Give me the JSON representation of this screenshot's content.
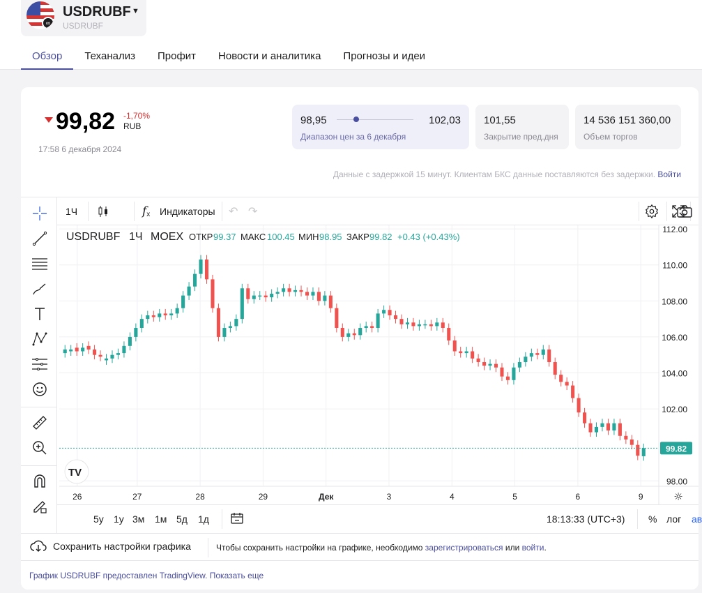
{
  "header": {
    "ticker": "USDRUBF",
    "ticker_sub": "USDRUBF",
    "caret_icon": "chevron-down-icon",
    "tabs": [
      {
        "label": "Обзор",
        "active": true
      },
      {
        "label": "Теханализ",
        "active": false
      },
      {
        "label": "Профит",
        "active": false
      },
      {
        "label": "Новости и аналитика",
        "active": false
      },
      {
        "label": "Прогнозы и идеи",
        "active": false
      }
    ]
  },
  "quote": {
    "price": "99,82",
    "change": "-1,70%",
    "currency": "RUB",
    "timestamp": "17:58 6 декабря 2024",
    "range_low": "98,95",
    "range_high": "102,03",
    "range_label": "Диапазон цен за 6 декабря",
    "range_position": 0.25,
    "prev_close": "101,55",
    "prev_close_label": "Закрытие пред.дня",
    "volume": "14 536 151 360,00",
    "volume_label": "Объем торгов",
    "delay_text": "Данные с задержкой 15 минут. Клиентам БКС данные поставляются без задержки.",
    "delay_link": "Войти",
    "down_color": "#d63030",
    "accent_color": "#4b4fa0"
  },
  "chart_toolbar": {
    "interval": "1Ч",
    "indicators": "Индикаторы",
    "legend_symbol": "USDRUBF",
    "legend_interval": "1Ч",
    "legend_exchange": "MOEX",
    "open_label": "ОТКР",
    "open_value": "99.37",
    "high_label": "МАКС",
    "high_value": "100.45",
    "low_label": "МИН",
    "low_value": "98.95",
    "close_label": "ЗАКР",
    "close_value": "99.82",
    "change_text": "+0.43 (+0.43%)",
    "periods": [
      "5у",
      "1у",
      "3м",
      "1м",
      "5д",
      "1д"
    ],
    "time": "18:13:33 (UTC+3)",
    "pct": "%",
    "log": "лог",
    "auto": "авто"
  },
  "chart_data": {
    "type": "candlestick",
    "x_ticks": [
      "26",
      "27",
      "28",
      "29",
      "Дек",
      "3",
      "4",
      "5",
      "6",
      "9"
    ],
    "y_ticks": [
      "112.00",
      "110.00",
      "108.00",
      "106.00",
      "104.00",
      "102.00",
      "98.00"
    ],
    "ylim": [
      97.7,
      112.2
    ],
    "last_price": "99.82",
    "up_color": "#26a69a",
    "down_color": "#ef5350",
    "closes": [
      105.3,
      105.3,
      105.2,
      105.4,
      105.3,
      105.0,
      104.9,
      104.8,
      105.0,
      105.1,
      105.5,
      106.0,
      106.5,
      107.0,
      107.2,
      107.1,
      107.3,
      107.2,
      107.3,
      107.6,
      108.3,
      108.8,
      109.5,
      110.3,
      109.2,
      107.6,
      106.0,
      106.5,
      106.6,
      107.0,
      108.7,
      108.1,
      108.3,
      108.3,
      108.2,
      108.4,
      108.5,
      108.7,
      108.5,
      108.6,
      108.5,
      108.3,
      108.5,
      108.0,
      108.3,
      107.6,
      106.5,
      106.0,
      106.2,
      106.1,
      106.5,
      106.6,
      106.5,
      107.3,
      107.5,
      107.2,
      107.0,
      106.7,
      106.8,
      106.6,
      106.7,
      106.7,
      106.6,
      106.8,
      106.5,
      105.8,
      105.2,
      105.1,
      105.2,
      104.8,
      104.6,
      104.4,
      104.5,
      104.3,
      103.8,
      103.6,
      104.3,
      104.6,
      104.9,
      105.1,
      105.0,
      105.3,
      104.6,
      103.9,
      103.5,
      103.3,
      102.6,
      101.8,
      101.2,
      100.7,
      101.0,
      101.2,
      100.8,
      101.2,
      100.5,
      100.3,
      100.0,
      99.4,
      99.82
    ],
    "opens": [
      105.1,
      105.2,
      105.4,
      105.2,
      105.5,
      105.3,
      105.0,
      104.7,
      104.8,
      105.0,
      105.1,
      105.5,
      106.0,
      106.5,
      107.0,
      107.2,
      107.1,
      107.3,
      107.2,
      107.3,
      107.6,
      108.3,
      108.8,
      109.5,
      110.3,
      109.2,
      107.6,
      106.0,
      106.5,
      106.6,
      107.0,
      108.7,
      108.1,
      108.3,
      108.3,
      108.2,
      108.4,
      108.5,
      108.7,
      108.5,
      108.6,
      108.5,
      108.3,
      108.5,
      108.0,
      108.3,
      107.6,
      106.5,
      106.0,
      106.2,
      106.1,
      106.5,
      106.6,
      106.5,
      107.3,
      107.5,
      107.2,
      107.0,
      106.7,
      106.8,
      106.6,
      106.7,
      106.7,
      106.6,
      106.8,
      106.5,
      105.8,
      105.2,
      105.1,
      105.2,
      104.8,
      104.6,
      104.4,
      104.5,
      104.3,
      103.8,
      103.6,
      104.3,
      104.6,
      104.9,
      105.1,
      105.0,
      105.3,
      104.6,
      103.9,
      103.5,
      103.3,
      102.6,
      101.8,
      101.2,
      100.7,
      101.0,
      101.2,
      100.8,
      101.2,
      100.5,
      100.3,
      100.0,
      99.37
    ]
  },
  "save_bar": {
    "button": "Сохранить настройки графика",
    "hint": "Чтобы сохранить настройки на графике, необходимо",
    "register": "зарегистрироваться",
    "or": "или",
    "login": "войти",
    "dot": "."
  },
  "footer": {
    "credit": "График USDRUBF предоставлен TradingView.",
    "more": "Показать еще"
  }
}
